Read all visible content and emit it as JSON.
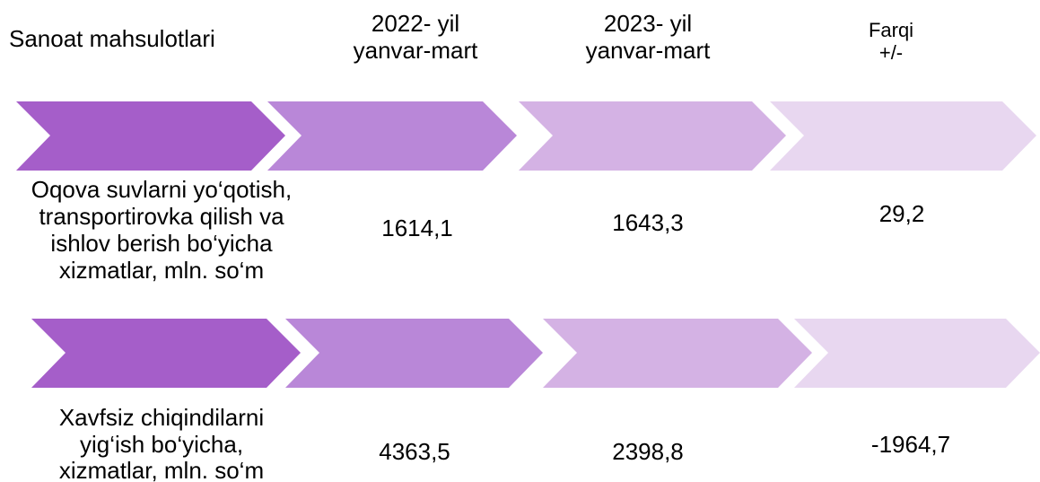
{
  "header": {
    "title": "Sanoat mahsulotlari",
    "columns": [
      [
        "2022- yil",
        "yanvar-mart"
      ],
      [
        "2023- yil",
        "yanvar-mart"
      ],
      [
        "Farqi",
        "+/-"
      ]
    ]
  },
  "rows": [
    {
      "label": [
        "Oqova suvlarni yo‘qotish,",
        "transportirovka qilish va",
        "ishlov berish bo‘yicha",
        "xizmatlar, mln. so‘m"
      ],
      "values": [
        "1614,1",
        "1643,3",
        "29,2"
      ]
    },
    {
      "label": [
        "Xavfsiz chiqindilarni",
        "yig‘ish bo‘yicha,",
        "xizmatlar, mln. so‘m"
      ],
      "values": [
        "4363,5",
        "2398,8",
        "-1964,7"
      ]
    }
  ]
}
